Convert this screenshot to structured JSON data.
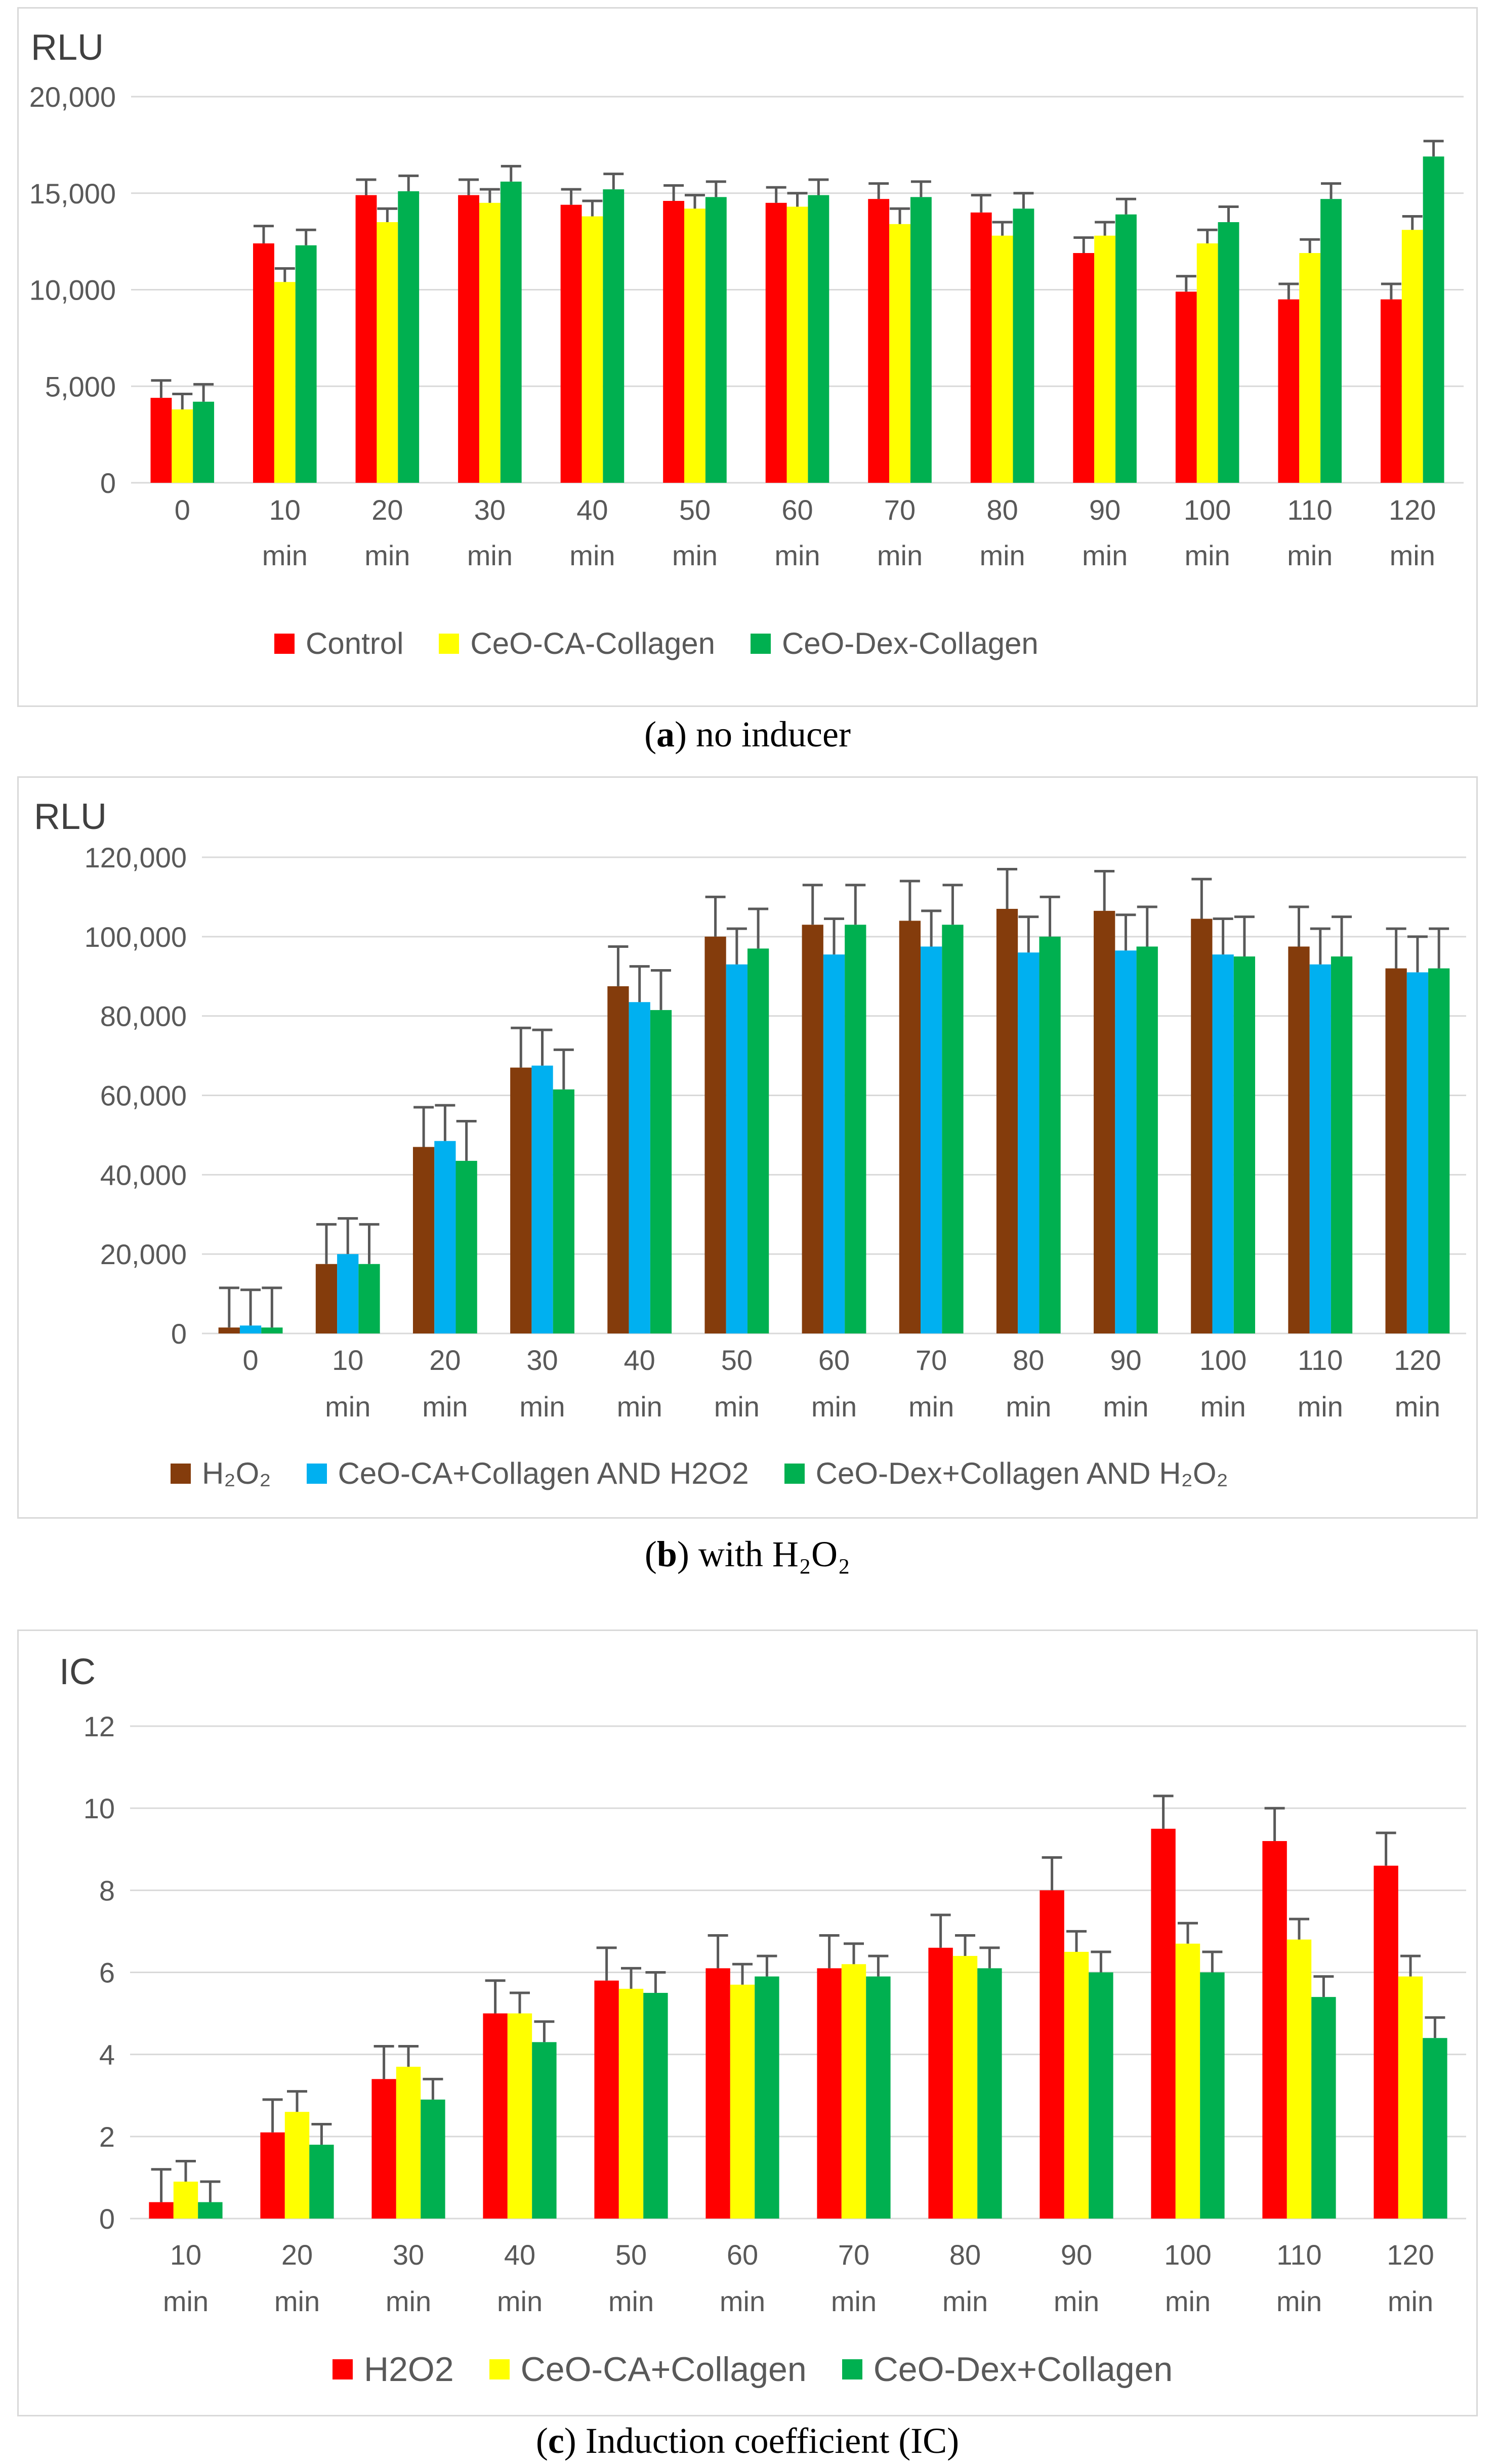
{
  "chart_data": [
    {
      "id": "a",
      "type": "bar",
      "title": "",
      "ylabel": "RLU",
      "xlabel": "",
      "ylim": [
        0,
        20000
      ],
      "yticks": [
        "0",
        "5,000",
        "10,000",
        "15,000",
        "20,000"
      ],
      "ytick_values": [
        0,
        5000,
        10000,
        15000,
        20000
      ],
      "categories": [
        [
          "0",
          ""
        ],
        [
          "10",
          "min"
        ],
        [
          "20",
          "min"
        ],
        [
          "30",
          "min"
        ],
        [
          "40",
          "min"
        ],
        [
          "50",
          "min"
        ],
        [
          "60",
          "min"
        ],
        [
          "70",
          "min"
        ],
        [
          "80",
          "min"
        ],
        [
          "90",
          "min"
        ],
        [
          "100",
          "min"
        ],
        [
          "110",
          "min"
        ],
        [
          "120",
          "min"
        ]
      ],
      "series": [
        {
          "name": "Control",
          "color": "#ff0000",
          "values": [
            4400,
            12400,
            14900,
            14900,
            14400,
            14600,
            14500,
            14700,
            14000,
            11900,
            9900,
            9500,
            9500
          ],
          "errors": [
            900,
            900,
            800,
            800,
            800,
            800,
            800,
            800,
            900,
            800,
            800,
            800,
            800
          ]
        },
        {
          "name": "CeO-CA-Collagen",
          "color": "#ffff00",
          "values": [
            3800,
            10400,
            13500,
            14500,
            13800,
            14200,
            14300,
            13400,
            12800,
            12800,
            12400,
            11900,
            13100
          ],
          "errors": [
            800,
            700,
            700,
            700,
            800,
            700,
            700,
            800,
            700,
            700,
            700,
            700,
            700
          ]
        },
        {
          "name": "CeO-Dex-Collagen",
          "color": "#00b050",
          "values": [
            4200,
            12300,
            15100,
            15600,
            15200,
            14800,
            14900,
            14800,
            14200,
            13900,
            13500,
            14700,
            16900
          ],
          "errors": [
            900,
            800,
            800,
            800,
            800,
            800,
            800,
            800,
            800,
            800,
            800,
            800,
            800
          ]
        }
      ],
      "legend": [
        "Control",
        "CeO-CA-Collagen",
        "CeO-Dex-Collagen"
      ],
      "caption_letter": "a",
      "caption_text": "no inducer"
    },
    {
      "id": "b",
      "type": "bar",
      "title": "",
      "ylabel": "RLU",
      "xlabel": "",
      "ylim": [
        0,
        120000
      ],
      "yticks": [
        "0",
        "20,000",
        "40,000",
        "60,000",
        "80,000",
        "100,000",
        "120,000"
      ],
      "ytick_values": [
        0,
        20000,
        40000,
        60000,
        80000,
        100000,
        120000
      ],
      "categories": [
        [
          "0",
          ""
        ],
        [
          "10",
          "min"
        ],
        [
          "20",
          "min"
        ],
        [
          "30",
          "min"
        ],
        [
          "40",
          "min"
        ],
        [
          "50",
          "min"
        ],
        [
          "60",
          "min"
        ],
        [
          "70",
          "min"
        ],
        [
          "80",
          "min"
        ],
        [
          "90",
          "min"
        ],
        [
          "100",
          "min"
        ],
        [
          "110",
          "min"
        ],
        [
          "120",
          "min"
        ]
      ],
      "series": [
        {
          "name": "H₂O₂",
          "color": "#843c0c",
          "values": [
            1500,
            17500,
            47000,
            67000,
            87500,
            100000,
            103000,
            104000,
            107000,
            106500,
            104500,
            97500,
            92000
          ],
          "errors": [
            10000,
            10000,
            10000,
            10000,
            10000,
            10000,
            10000,
            10000,
            10000,
            10000,
            10000,
            10000,
            10000
          ]
        },
        {
          "name": "CeO-CA+Collagen AND H2O2",
          "color": "#00b0f0",
          "values": [
            2000,
            20000,
            48500,
            67500,
            83500,
            93000,
            95500,
            97500,
            96000,
            96500,
            95500,
            93000,
            91000
          ],
          "errors": [
            9000,
            9000,
            9000,
            9000,
            9000,
            9000,
            9000,
            9000,
            9000,
            9000,
            9000,
            9000,
            9000
          ]
        },
        {
          "name": "CeO-Dex+Collagen AND H₂O₂",
          "color": "#00b050",
          "values": [
            1500,
            17500,
            43500,
            61500,
            81500,
            97000,
            103000,
            103000,
            100000,
            97500,
            95000,
            95000,
            92000
          ],
          "errors": [
            10000,
            10000,
            10000,
            10000,
            10000,
            10000,
            10000,
            10000,
            10000,
            10000,
            10000,
            10000,
            10000
          ]
        }
      ],
      "legend": [
        "H₂O₂",
        "CeO-CA+Collagen AND H2O2",
        "CeO-Dex+Collagen AND H₂O₂"
      ],
      "caption_letter": "b",
      "caption_text": "with H₂O₂"
    },
    {
      "id": "c",
      "type": "bar",
      "title": "",
      "ylabel": "IC",
      "xlabel": "",
      "ylim": [
        0,
        12
      ],
      "yticks": [
        "0",
        "2",
        "4",
        "6",
        "8",
        "10",
        "12"
      ],
      "ytick_values": [
        0,
        2,
        4,
        6,
        8,
        10,
        12
      ],
      "categories": [
        [
          "10",
          "min"
        ],
        [
          "20",
          "min"
        ],
        [
          "30",
          "min"
        ],
        [
          "40",
          "min"
        ],
        [
          "50",
          "min"
        ],
        [
          "60",
          "min"
        ],
        [
          "70",
          "min"
        ],
        [
          "80",
          "min"
        ],
        [
          "90",
          "min"
        ],
        [
          "100",
          "min"
        ],
        [
          "110",
          "min"
        ],
        [
          "120",
          "min"
        ]
      ],
      "series": [
        {
          "name": "H2O2",
          "color": "#ff0000",
          "values": [
            0.4,
            2.1,
            3.4,
            5.0,
            5.8,
            6.1,
            6.1,
            6.6,
            8.0,
            9.5,
            9.2,
            8.6
          ],
          "errors": [
            0.8,
            0.8,
            0.8,
            0.8,
            0.8,
            0.8,
            0.8,
            0.8,
            0.8,
            0.8,
            0.8,
            0.8
          ]
        },
        {
          "name": "CeO-CA+Collagen",
          "color": "#ffff00",
          "values": [
            0.9,
            2.6,
            3.7,
            5.0,
            5.6,
            5.7,
            6.2,
            6.4,
            6.5,
            6.7,
            6.8,
            5.9
          ],
          "errors": [
            0.5,
            0.5,
            0.5,
            0.5,
            0.5,
            0.5,
            0.5,
            0.5,
            0.5,
            0.5,
            0.5,
            0.5
          ]
        },
        {
          "name": "CeO-Dex+Collagen",
          "color": "#00b050",
          "values": [
            0.4,
            1.8,
            2.9,
            4.3,
            5.5,
            5.9,
            5.9,
            6.1,
            6.0,
            6.0,
            5.4,
            4.4
          ],
          "errors": [
            0.5,
            0.5,
            0.5,
            0.5,
            0.5,
            0.5,
            0.5,
            0.5,
            0.5,
            0.5,
            0.5,
            0.5
          ]
        }
      ],
      "legend": [
        "H2O2",
        "CeO-CA+Collagen",
        "CeO-Dex+Collagen"
      ],
      "caption_letter": "c",
      "caption_text": "Induction coefficient (IC)"
    }
  ]
}
